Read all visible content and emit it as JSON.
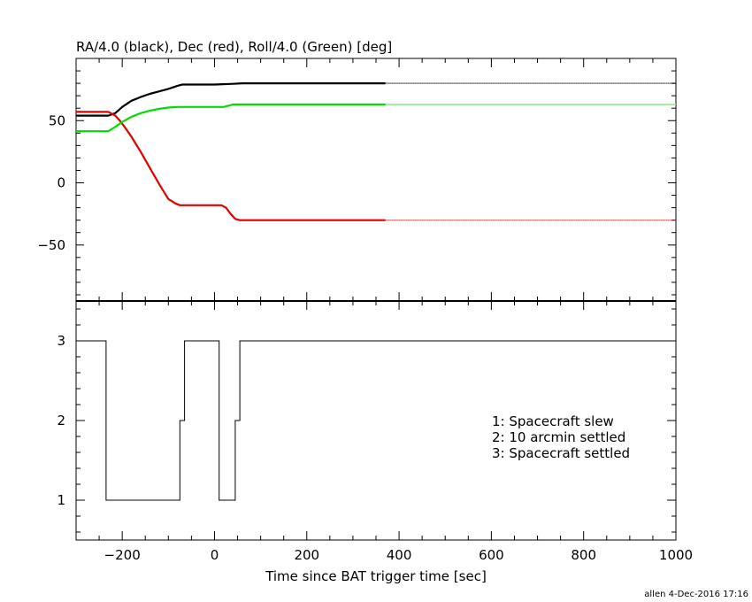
{
  "chart_data": [
    {
      "type": "line",
      "title": "RA/4.0 (black), Dec (red), Roll/4.0 (Green) [deg]",
      "xlim": [
        -300,
        1000
      ],
      "ylim": [
        -95,
        100
      ],
      "y_ticks": [
        50,
        0,
        -50
      ],
      "y_tick_labels": [
        "50",
        "0",
        "−50"
      ],
      "series": [
        {
          "color": "#000000",
          "x": [
            -300,
            -230,
            -215,
            -200,
            -180,
            -160,
            -140,
            -120,
            -100,
            -80,
            -70,
            0,
            40,
            60,
            370
          ],
          "y": [
            54,
            54,
            56,
            61,
            66,
            69,
            71.5,
            73.5,
            75.5,
            78,
            79,
            79,
            79.6,
            80,
            80
          ],
          "extension_x": [
            370,
            1000
          ],
          "extension_y": [
            80,
            80
          ]
        },
        {
          "color": "#e00000",
          "x": [
            -300,
            -230,
            -215,
            -205,
            -195,
            -180,
            -160,
            -140,
            -120,
            -100,
            -85,
            -75,
            -65,
            15,
            25,
            35,
            45,
            55,
            370
          ],
          "y": [
            57,
            57,
            54,
            50,
            45,
            37,
            25,
            12,
            -1,
            -13,
            -16.5,
            -18,
            -18,
            -18,
            -20,
            -25,
            -29,
            -30,
            -30
          ],
          "extension_x": [
            370,
            1000
          ],
          "extension_y": [
            -30,
            -30
          ]
        },
        {
          "color": "#00dd00",
          "x": [
            -300,
            -230,
            -215,
            -200,
            -180,
            -160,
            -140,
            -120,
            -100,
            -80,
            -60,
            20,
            30,
            40,
            370
          ],
          "y": [
            41.5,
            41.5,
            45,
            49,
            53,
            56,
            58,
            59.5,
            60.5,
            61,
            61,
            61,
            62,
            63,
            63
          ],
          "extension_x": [
            370,
            1000
          ],
          "extension_y": [
            63,
            63
          ]
        }
      ]
    },
    {
      "type": "line",
      "xlabel": "Time since BAT trigger time [sec]",
      "xlim": [
        -300,
        1000
      ],
      "ylim": [
        0.5,
        3.5
      ],
      "x_ticks": [
        -200,
        0,
        200,
        400,
        600,
        800,
        1000
      ],
      "x_tick_labels": [
        "−200",
        "0",
        "200",
        "400",
        "600",
        "800",
        "1000"
      ],
      "y_ticks": [
        1,
        2,
        3
      ],
      "y_tick_labels": [
        "1",
        "2",
        "3"
      ],
      "legend": [
        "1: Spacecraft slew",
        "2: 10 arcmin settled",
        "3: Spacecraft settled"
      ],
      "legend_placement": "right",
      "series": [
        {
          "color": "#000000",
          "step": true,
          "x": [
            -300,
            -235,
            -235,
            -75,
            -75,
            -65,
            -65,
            10,
            10,
            45,
            45,
            55,
            55,
            1000
          ],
          "y": [
            3,
            3,
            1,
            1,
            2,
            2,
            3,
            3,
            1,
            1,
            2,
            2,
            3,
            3
          ]
        }
      ]
    }
  ],
  "footer": {
    "stamp": "allen  4-Dec-2016 17:16"
  }
}
